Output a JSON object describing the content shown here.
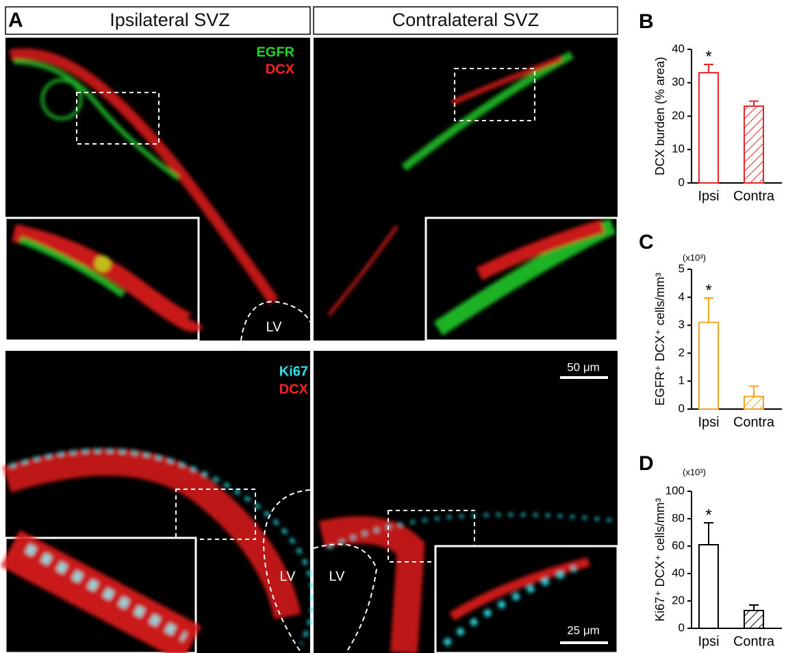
{
  "panel_a": {
    "letter": "A",
    "headers": [
      "Ipsilateral SVZ",
      "Contralateral SVZ"
    ],
    "top_labels": [
      "EGFR",
      "DCX"
    ],
    "bottom_labels": [
      "Ki67",
      "DCX"
    ],
    "lv_labels": [
      "LV",
      "LV",
      "LV"
    ],
    "scale_bars": [
      "50 μm",
      "25 μm"
    ]
  },
  "chart_data": [
    {
      "type": "bar",
      "panel_label": "B",
      "ylabel": "DCX burden (% area)",
      "categories": [
        "Ipsi",
        "Contra"
      ],
      "values": [
        33,
        23
      ],
      "errors": [
        2.5,
        1.5
      ],
      "color": "#e8262a",
      "hatch": [
        false,
        true
      ],
      "ylim": [
        0,
        40
      ],
      "yticks": [
        0,
        10,
        20,
        30,
        40
      ],
      "annotation": {
        "text": "*",
        "category": "Ipsi"
      }
    },
    {
      "type": "bar",
      "panel_label": "C",
      "ylabel": "EGFR⁺ DCX⁺ cells/mm³",
      "multiplier": "(x10³)",
      "categories": [
        "Ipsi",
        "Contra"
      ],
      "values": [
        3.1,
        0.45
      ],
      "errors": [
        0.87,
        0.37
      ],
      "color": "#f4a21f",
      "hatch": [
        false,
        true
      ],
      "ylim": [
        0,
        5
      ],
      "yticks": [
        0,
        1,
        2,
        3,
        4,
        5
      ],
      "annotation": {
        "text": "*",
        "category": "Ipsi"
      }
    },
    {
      "type": "bar",
      "panel_label": "D",
      "ylabel": "Ki67⁺ DCX⁺ cells/mm³",
      "multiplier": "(x10³)",
      "categories": [
        "Ipsi",
        "Contra"
      ],
      "values": [
        61,
        13
      ],
      "errors": [
        16,
        4
      ],
      "color": "#000000",
      "hatch": [
        false,
        true
      ],
      "ylim": [
        0,
        100
      ],
      "yticks": [
        0,
        20,
        40,
        60,
        80,
        100
      ],
      "annotation": {
        "text": "*",
        "category": "Ipsi"
      }
    }
  ]
}
